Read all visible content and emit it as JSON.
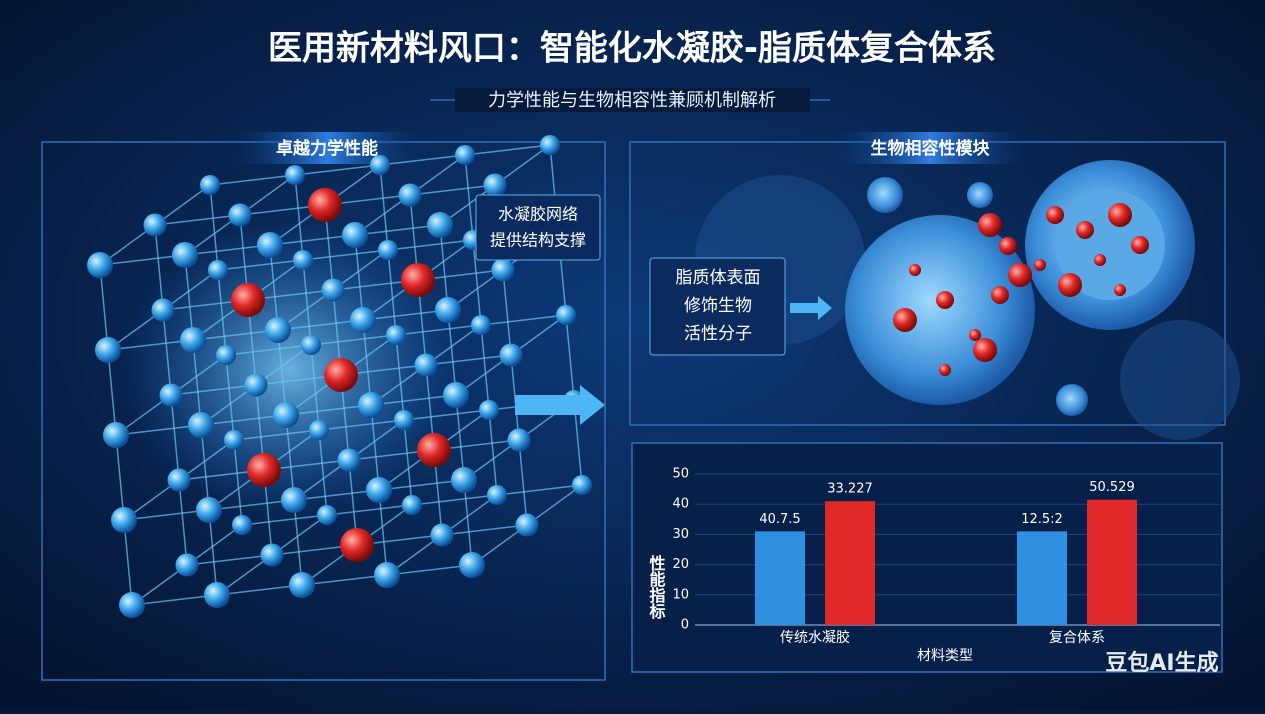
{
  "header": {
    "title": "医用新材料风口：智能化水凝胶-脂质体复合体系",
    "subtitle": "力学性能与生物相容性兼顾机制解析"
  },
  "panels": [
    {
      "label": "卓越力学性能",
      "callout": [
        "水凝胶网络",
        "提供结构支撑"
      ]
    },
    {
      "label": "生物相容性模块",
      "callout": [
        "脂质体表面",
        "修饰生物",
        "活性分子"
      ]
    }
  ],
  "chart_data": {
    "type": "bar",
    "categories": [
      "传统水凝胶",
      "复合体系"
    ],
    "series": [
      {
        "color": "#2f8fe0",
        "values": [
          31,
          31
        ]
      },
      {
        "color": "#e02a2a",
        "values": [
          41,
          41.5
        ]
      }
    ],
    "annotations": [
      "40.7.5",
      "33.227",
      "12.5:2",
      "50.529"
    ],
    "xlabel": "材料类型",
    "ylabel": "性能指标",
    "ylim": [
      0,
      50
    ],
    "yticks": [
      0,
      10,
      20,
      30,
      40,
      50
    ],
    "grid": true
  },
  "watermark": "豆包AI生成"
}
